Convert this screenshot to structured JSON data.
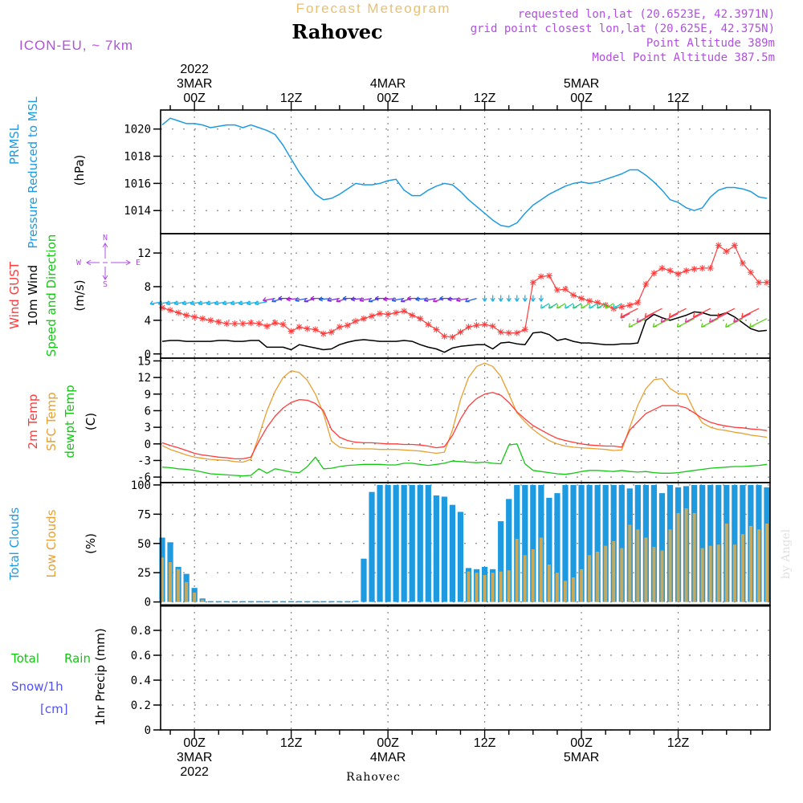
{
  "header": {
    "super_title": "Forecast Meteogram",
    "location": "Rahovec",
    "model": "ICON-EU, ~ 7km",
    "requested": "requested lon,lat (20.6523E, 42.3971N)",
    "grid_point": "grid point closest lon,lat (20.625E, 42.375N)",
    "point_alt": "Point Altitude 389m",
    "model_alt": "Model Point Altitude 387.5m",
    "footer_location": "Rahovec",
    "watermark": "by Angel"
  },
  "time_axis": {
    "top_labels": [
      {
        "t": 0,
        "lines": [
          "2022",
          "3MAR",
          "00Z"
        ]
      },
      {
        "t": 12,
        "lines": [
          "12Z"
        ]
      },
      {
        "t": 24,
        "lines": [
          "4MAR",
          "00Z"
        ]
      },
      {
        "t": 36,
        "lines": [
          "12Z"
        ]
      },
      {
        "t": 48,
        "lines": [
          "5MAR",
          "00Z"
        ]
      },
      {
        "t": 60,
        "lines": [
          "12Z"
        ]
      }
    ],
    "bottom_labels": [
      {
        "t": 0,
        "lines": [
          "00Z",
          "3MAR",
          "2022"
        ]
      },
      {
        "t": 12,
        "lines": [
          "12Z"
        ]
      },
      {
        "t": 24,
        "lines": [
          "00Z",
          "4MAR"
        ]
      },
      {
        "t": 36,
        "lines": [
          "12Z"
        ]
      },
      {
        "t": 48,
        "lines": [
          "00Z",
          "5MAR"
        ]
      },
      {
        "t": 60,
        "lines": [
          "12Z"
        ]
      }
    ]
  },
  "panel_labels": {
    "prmsl": {
      "line1": "PRMSL",
      "line2": "Pressure Reduced to MSL",
      "unit": "(hPa)"
    },
    "wind": {
      "gust": "Wind GUST",
      "wind10": "10m Wind",
      "speed_dir": "Speed and Direction",
      "unit": "(m/s)",
      "compass": {
        "n": "N",
        "s": "S",
        "w": "W",
        "e": "E"
      }
    },
    "temp": {
      "t2m": "2m Temp",
      "sfc": "SFC Temp",
      "dewpt": "dewpt Temp",
      "unit": "(C)"
    },
    "clouds": {
      "total": "Total Clouds",
      "low": "Low Clouds",
      "unit": "(%)"
    },
    "precip": {
      "rain_a": "Total",
      "rain_b": "Rain",
      "snow": "Snow/1h",
      "snow_unit": "[cm]",
      "axis": "1hr Precip (mm)"
    }
  },
  "colors": {
    "pressure": "#1e9be0",
    "gust": "#ff3b3b",
    "wind": "#000000",
    "t2m": "#ff3b3b",
    "sfc": "#e8a030",
    "dewpt": "#12c812",
    "total_clouds": "#1e9be0",
    "low_clouds": "#c8a85a",
    "snow_label": "#5050ff",
    "model_label": "#b050e0",
    "super_title": "#e8c070"
  },
  "chart_data": [
    {
      "type": "line",
      "name": "prmsl",
      "xlabel": "",
      "ylabel": "(hPa)",
      "ylim": [
        1012.3,
        1021.4
      ],
      "yticks": [
        1014,
        1016,
        1018,
        1020
      ],
      "x": [
        -4,
        -3,
        -2,
        -1,
        0,
        1,
        2,
        3,
        4,
        5,
        6,
        7,
        8,
        9,
        10,
        11,
        12,
        13,
        14,
        15,
        16,
        17,
        18,
        19,
        20,
        21,
        22,
        23,
        24,
        25,
        26,
        27,
        28,
        29,
        30,
        31,
        32,
        33,
        34,
        35,
        36,
        37,
        38,
        39,
        40,
        41,
        42,
        43,
        44,
        45,
        46,
        47,
        48,
        49,
        50,
        51,
        52,
        53,
        54,
        55,
        56,
        57,
        58,
        59,
        60,
        61,
        62,
        63,
        64,
        65,
        66,
        67,
        68,
        69,
        70,
        71
      ],
      "values": [
        1020.3,
        1020.8,
        1020.6,
        1020.4,
        1020.4,
        1020.3,
        1020.1,
        1020.2,
        1020.3,
        1020.3,
        1020.1,
        1020.3,
        1020.1,
        1019.9,
        1019.6,
        1018.8,
        1017.8,
        1016.8,
        1016.0,
        1015.2,
        1014.8,
        1014.9,
        1015.2,
        1015.6,
        1016.0,
        1015.9,
        1015.9,
        1016.0,
        1016.2,
        1016.3,
        1015.5,
        1015.1,
        1015.1,
        1015.5,
        1015.8,
        1016.0,
        1015.9,
        1015.4,
        1014.8,
        1014.3,
        1013.8,
        1013.3,
        1012.9,
        1012.8,
        1013.1,
        1013.8,
        1014.4,
        1014.8,
        1015.2,
        1015.5,
        1015.8,
        1016.0,
        1016.1,
        1016.0,
        1016.1,
        1016.3,
        1016.5,
        1016.7,
        1017.0,
        1017.0,
        1016.6,
        1016.1,
        1015.5,
        1014.8,
        1014.6,
        1014.2,
        1014.0,
        1014.2,
        1015.0,
        1015.5,
        1015.7,
        1015.7,
        1015.6,
        1015.4,
        1015.0,
        1014.9
      ]
    },
    {
      "type": "line",
      "name": "wind",
      "xlabel": "",
      "ylabel": "(m/s)",
      "ylim": [
        -0.5,
        14.3
      ],
      "yticks": [
        0,
        4,
        8,
        12
      ],
      "x": [
        -4,
        -3,
        -2,
        -1,
        0,
        1,
        2,
        3,
        4,
        5,
        6,
        7,
        8,
        9,
        10,
        11,
        12,
        13,
        14,
        15,
        16,
        17,
        18,
        19,
        20,
        21,
        22,
        23,
        24,
        25,
        26,
        27,
        28,
        29,
        30,
        31,
        32,
        33,
        34,
        35,
        36,
        37,
        38,
        39,
        40,
        41,
        42,
        43,
        44,
        45,
        46,
        47,
        48,
        49,
        50,
        51,
        52,
        53,
        54,
        55,
        56,
        57,
        58,
        59,
        60,
        61,
        62,
        63,
        64,
        65,
        66,
        67,
        68,
        69,
        70,
        71
      ],
      "series": [
        {
          "name": "Wind GUST",
          "values": [
            5.5,
            5.2,
            4.9,
            4.6,
            4.4,
            4.2,
            4.0,
            3.8,
            3.6,
            3.6,
            3.6,
            3.7,
            3.6,
            3.3,
            3.7,
            3.5,
            2.7,
            3.2,
            3.0,
            2.9,
            2.4,
            2.6,
            3.2,
            3.4,
            3.9,
            4.2,
            4.5,
            4.8,
            4.7,
            4.9,
            5.1,
            4.6,
            4.2,
            3.5,
            2.9,
            2.1,
            2.0,
            2.6,
            3.2,
            3.4,
            3.5,
            3.3,
            2.6,
            2.5,
            2.5,
            2.9,
            8.5,
            9.2,
            9.3,
            7.6,
            7.7,
            7.0,
            6.6,
            6.3,
            6.1,
            5.8,
            5.4,
            5.6,
            5.8,
            6.1,
            8.3,
            9.6,
            10.2,
            9.9,
            9.5,
            9.9,
            10.1,
            10.2,
            10.2,
            12.9,
            12.2,
            12.9,
            10.8,
            9.7,
            8.5,
            8.5
          ]
        },
        {
          "name": "10m Wind",
          "values": [
            1.5,
            1.6,
            1.6,
            1.5,
            1.5,
            1.5,
            1.5,
            1.6,
            1.6,
            1.5,
            1.5,
            1.6,
            1.6,
            0.8,
            0.8,
            0.8,
            0.5,
            1.1,
            0.9,
            0.7,
            0.5,
            0.6,
            1.1,
            1.4,
            1.6,
            1.7,
            1.6,
            1.5,
            1.5,
            1.5,
            1.6,
            1.5,
            1.1,
            0.8,
            0.6,
            0.2,
            0.7,
            0.9,
            1.0,
            1.1,
            1.1,
            0.6,
            1.3,
            1.4,
            1.2,
            1.1,
            2.5,
            2.6,
            2.3,
            1.6,
            1.8,
            1.5,
            1.3,
            1.3,
            1.2,
            1.1,
            1.1,
            1.2,
            1.2,
            1.3,
            4.0,
            4.7,
            4.3,
            4.0,
            4.3,
            4.6,
            5.0,
            4.9,
            4.6,
            4.6,
            4.9,
            4.4,
            3.7,
            3.0,
            2.7,
            2.8
          ]
        }
      ],
      "direction_arrows": "wind barbs drawn along y of about 3.5-7 m/s, colored by direction"
    },
    {
      "type": "line",
      "name": "temperature",
      "xlabel": "",
      "ylabel": "(C)",
      "ylim": [
        -7,
        15.5
      ],
      "yticks": [
        -6,
        -3,
        0,
        3,
        6,
        9,
        12,
        15
      ],
      "x": [
        -4,
        -3,
        -2,
        -1,
        0,
        1,
        2,
        3,
        4,
        5,
        6,
        7,
        8,
        9,
        10,
        11,
        12,
        13,
        14,
        15,
        16,
        17,
        18,
        19,
        20,
        21,
        22,
        23,
        24,
        25,
        26,
        27,
        28,
        29,
        30,
        31,
        32,
        33,
        34,
        35,
        36,
        37,
        38,
        39,
        40,
        41,
        42,
        43,
        44,
        45,
        46,
        47,
        48,
        49,
        50,
        51,
        52,
        53,
        54,
        55,
        56,
        57,
        58,
        59,
        60,
        61,
        62,
        63,
        64,
        65,
        66,
        67,
        68,
        69,
        70,
        71
      ],
      "series": [
        {
          "name": "2m Temp",
          "values": [
            0.2,
            -0.3,
            -0.7,
            -1.2,
            -1.7,
            -2.0,
            -2.2,
            -2.4,
            -2.5,
            -2.7,
            -2.7,
            -2.4,
            0.5,
            3.0,
            5.0,
            6.5,
            7.5,
            8.0,
            7.9,
            7.3,
            6.0,
            2.6,
            1.2,
            0.6,
            0.3,
            0.2,
            0.2,
            0.1,
            0.0,
            0.0,
            -0.1,
            -0.1,
            -0.2,
            -0.4,
            -0.7,
            -0.5,
            1.5,
            4.5,
            6.8,
            8.2,
            9.0,
            9.3,
            8.8,
            7.5,
            5.8,
            4.5,
            3.3,
            2.5,
            1.7,
            1.0,
            0.6,
            0.3,
            0.0,
            -0.2,
            -0.3,
            -0.4,
            -0.4,
            -0.6,
            2.5,
            4.0,
            5.5,
            6.2,
            6.9,
            6.9,
            6.9,
            6.5,
            5.6,
            4.6,
            3.9,
            3.5,
            3.2,
            3.0,
            2.9,
            2.7,
            2.6,
            2.4
          ]
        },
        {
          "name": "SFC Temp",
          "values": [
            -0.3,
            -1.0,
            -1.5,
            -2.0,
            -2.4,
            -2.6,
            -2.8,
            -2.9,
            -3.0,
            -3.2,
            -3.3,
            -2.8,
            1.5,
            6.0,
            9.5,
            12.0,
            13.2,
            12.9,
            11.5,
            9.0,
            5.5,
            0.5,
            -0.6,
            -0.8,
            -0.9,
            -0.9,
            -0.9,
            -1.0,
            -1.0,
            -1.0,
            -1.1,
            -1.2,
            -1.3,
            -1.5,
            -1.7,
            -1.5,
            2.5,
            8.0,
            12.0,
            14.0,
            14.6,
            14.0,
            12.2,
            9.0,
            5.6,
            4.0,
            2.6,
            1.5,
            0.6,
            0.0,
            -0.4,
            -0.6,
            -0.7,
            -0.8,
            -0.9,
            -1.0,
            -1.2,
            -1.1,
            3.0,
            7.0,
            10.0,
            11.6,
            11.8,
            10.0,
            9.1,
            9.0,
            6.0,
            3.8,
            3.0,
            2.6,
            2.4,
            2.1,
            1.9,
            1.6,
            1.4,
            1.2
          ]
        },
        {
          "name": "dewpt Temp",
          "values": [
            -4.2,
            -4.3,
            -4.5,
            -4.6,
            -4.8,
            -5.1,
            -5.4,
            -5.5,
            -5.6,
            -5.7,
            -5.8,
            -5.7,
            -4.5,
            -5.3,
            -4.5,
            -4.8,
            -5.1,
            -5.2,
            -4.1,
            -2.4,
            -4.5,
            -4.4,
            -4.1,
            -3.9,
            -3.8,
            -3.7,
            -3.7,
            -3.7,
            -3.8,
            -3.8,
            -3.5,
            -3.5,
            -3.7,
            -3.9,
            -3.7,
            -3.5,
            -3.1,
            -3.2,
            -3.3,
            -3.4,
            -3.3,
            -3.5,
            -3.6,
            -0.2,
            0.0,
            -3.6,
            -4.8,
            -5.0,
            -5.2,
            -5.4,
            -5.5,
            -5.3,
            -5.0,
            -4.8,
            -4.8,
            -4.9,
            -5.0,
            -4.8,
            -5.0,
            -5.1,
            -5.0,
            -5.2,
            -5.3,
            -5.3,
            -5.2,
            -5.0,
            -4.8,
            -4.6,
            -4.4,
            -4.3,
            -4.2,
            -4.1,
            -4.1,
            -4.0,
            -3.9,
            -3.7
          ]
        }
      ]
    },
    {
      "type": "bar",
      "name": "clouds",
      "xlabel": "",
      "ylabel": "(%)",
      "ylim": [
        -3,
        102
      ],
      "yticks": [
        0,
        25,
        50,
        75,
        100
      ],
      "x": [
        -4,
        -3,
        -2,
        -1,
        0,
        1,
        2,
        3,
        4,
        5,
        6,
        7,
        8,
        9,
        10,
        11,
        12,
        13,
        14,
        15,
        16,
        17,
        18,
        19,
        20,
        21,
        22,
        23,
        24,
        25,
        26,
        27,
        28,
        29,
        30,
        31,
        32,
        33,
        34,
        35,
        36,
        37,
        38,
        39,
        40,
        41,
        42,
        43,
        44,
        45,
        46,
        47,
        48,
        49,
        50,
        51,
        52,
        53,
        54,
        55,
        56,
        57,
        58,
        59,
        60,
        61,
        62,
        63,
        64,
        65,
        66,
        67,
        68,
        69,
        70,
        71
      ],
      "series": [
        {
          "name": "Total Clouds",
          "values": [
            55,
            51,
            30,
            24,
            12,
            3,
            0,
            0,
            0,
            0,
            0,
            0,
            0,
            0,
            0,
            0,
            0,
            0,
            0,
            0,
            0,
            0,
            0,
            0,
            1,
            37,
            94,
            100,
            100,
            100,
            100,
            100,
            100,
            100,
            91,
            90,
            83,
            77,
            29,
            28,
            30,
            28,
            69,
            88,
            100,
            100,
            100,
            100,
            89,
            93,
            100,
            100,
            100,
            100,
            100,
            100,
            100,
            100,
            97,
            100,
            100,
            100,
            93,
            100,
            98,
            99,
            100,
            100,
            100,
            100,
            100,
            100,
            100,
            100,
            100,
            98
          ]
        },
        {
          "name": "Low Clouds",
          "values": [
            38,
            34,
            28,
            17,
            8,
            2,
            0,
            0,
            0,
            0,
            0,
            0,
            0,
            0,
            0,
            0,
            0,
            0,
            0,
            0,
            0,
            0,
            0,
            0,
            0,
            0,
            0,
            0,
            0,
            0,
            0,
            0,
            0,
            0,
            0,
            0,
            0,
            0,
            26,
            25,
            23,
            25,
            26,
            27,
            54,
            40,
            45,
            55,
            32,
            25,
            18,
            21,
            28,
            40,
            43,
            48,
            52,
            46,
            66,
            62,
            55,
            47,
            44,
            62,
            76,
            80,
            76,
            46,
            48,
            49,
            67,
            49,
            58,
            65,
            62,
            67
          ]
        }
      ]
    },
    {
      "type": "bar",
      "name": "precipitation",
      "xlabel": "",
      "ylabel": "1hr Precip (mm)",
      "ylim": [
        0,
        1.0
      ],
      "yticks": [
        0,
        0.2,
        0.4,
        0.6,
        0.8
      ],
      "ytick_labels": [
        "0",
        "0.2",
        "0.4",
        "0.6",
        "0.8"
      ],
      "series": [
        {
          "name": "Total Rain",
          "values": []
        }
      ]
    }
  ]
}
